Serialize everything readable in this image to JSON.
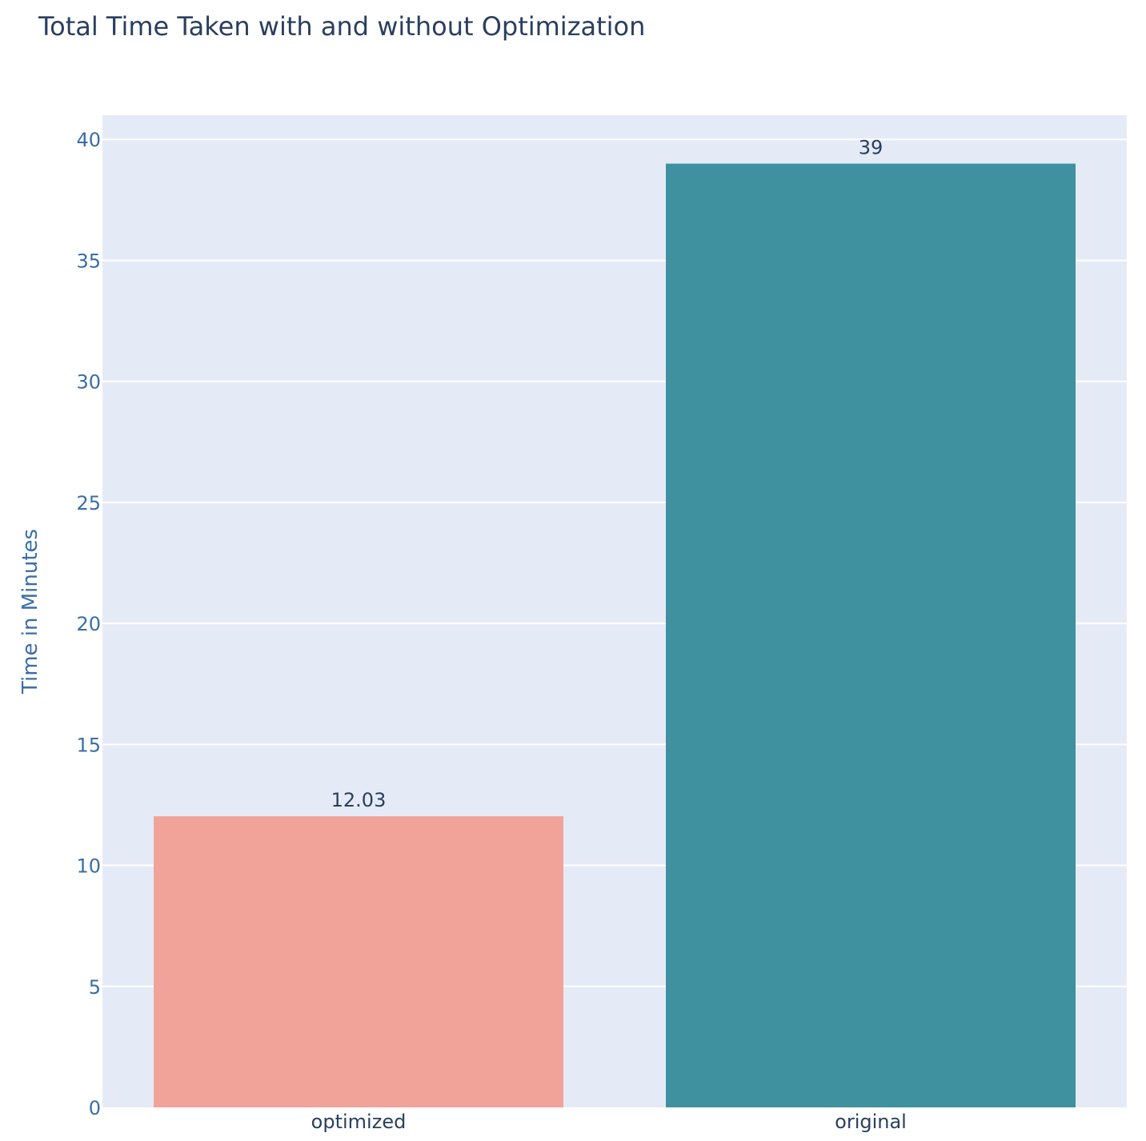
{
  "chart_data": {
    "type": "bar",
    "title": "Total Time Taken with and without Optimization",
    "xlabel": "",
    "ylabel": "Time in Minutes",
    "categories": [
      "optimized",
      "original"
    ],
    "values": [
      12.03,
      39
    ],
    "data_labels": [
      "12.03",
      "39"
    ],
    "bar_colors": [
      "#f1a39a",
      "#4091a0"
    ],
    "ylim": [
      0,
      41
    ],
    "yticks": [
      0,
      5,
      10,
      15,
      20,
      25,
      30,
      35,
      40
    ],
    "grid": true,
    "legend": "none"
  },
  "colors": {
    "plot_background": "#e5ebf6",
    "gridline": "#ffffff",
    "title_text": "#2a3f5f",
    "axis_text": "#3a6ea5",
    "tick_label_x": "#2a3f5f",
    "data_label": "#2a3f5f"
  }
}
